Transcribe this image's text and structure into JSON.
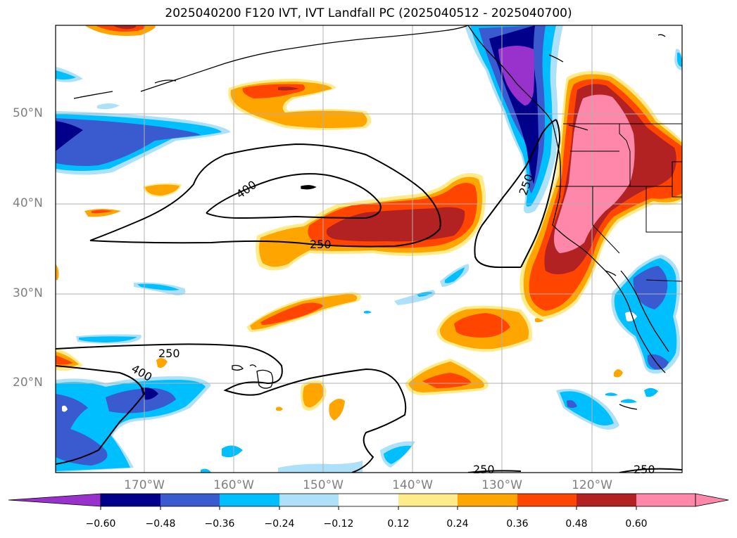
{
  "title": "2025040200 F120 IVT, IVT Landfall PC (2025040512 - 2025040700)",
  "lat_labels": [
    "50°N",
    "40°N",
    "30°N",
    "20°N"
  ],
  "lon_labels": [
    "170°W",
    "160°W",
    "150°W",
    "140°W",
    "130°W",
    "120°W"
  ],
  "contour_labels": [
    "400",
    "250",
    "250",
    "250",
    "400",
    "250",
    "250"
  ],
  "colorbar": {
    "ticks": [
      "−0.60",
      "−0.48",
      "−0.36",
      "−0.24",
      "−0.12",
      "0.12",
      "0.24",
      "0.36",
      "0.48",
      "0.60"
    ],
    "colors": [
      "#9932CC",
      "#00008B",
      "#3A5BCF",
      "#00BFFF",
      "#ADE1FA",
      "#FFFFFF",
      "#FFEB8A",
      "#FFA500",
      "#FF4500",
      "#B22222",
      "#FF88AA"
    ]
  },
  "colors": {
    "land_outline": "#000000",
    "grid": "#b0b0b0",
    "tick_label": "#808080"
  }
}
